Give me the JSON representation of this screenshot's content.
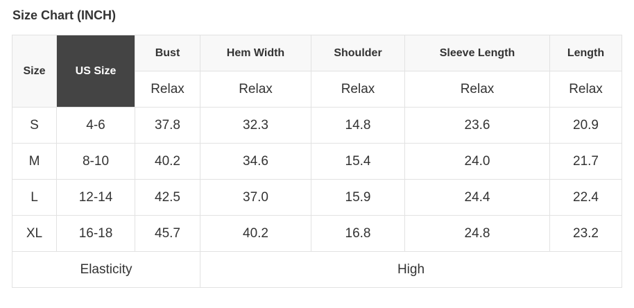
{
  "title": "Size Chart (INCH)",
  "headers": [
    "Size",
    "US Size",
    "Bust",
    "Hem Width",
    "Shoulder",
    "Sleeve Length",
    "Length"
  ],
  "subheaders": [
    "Relax",
    "Relax",
    "Relax",
    "Relax",
    "Relax"
  ],
  "rows": [
    [
      "S",
      "4-6",
      "37.8",
      "32.3",
      "14.8",
      "23.6",
      "20.9"
    ],
    [
      "M",
      "8-10",
      "40.2",
      "34.6",
      "15.4",
      "24.0",
      "21.7"
    ],
    [
      "L",
      "12-14",
      "42.5",
      "37.0",
      "15.9",
      "24.4",
      "22.4"
    ],
    [
      "XL",
      "16-18",
      "45.7",
      "40.2",
      "16.8",
      "24.8",
      "23.2"
    ]
  ],
  "footer": {
    "label": "Elasticity",
    "value": "High"
  },
  "colors": {
    "highlight": "#444444",
    "header_bg": "#f8f8f8",
    "border": "#e2e2e2"
  }
}
